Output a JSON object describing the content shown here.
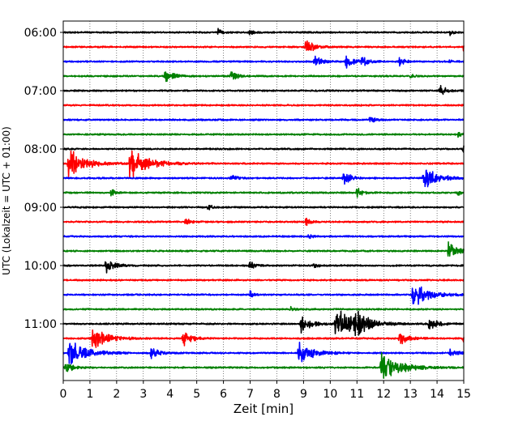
{
  "chart_data": {
    "type": "line",
    "title": "",
    "xlabel": "Zeit  [min]",
    "ylabel": "UTC (Lokalzeit = UTC + 01:00)",
    "xlim": [
      0,
      15
    ],
    "x_ticks": [
      "0",
      "1",
      "2",
      "3",
      "4",
      "5",
      "6",
      "7",
      "8",
      "9",
      "10",
      "11",
      "12",
      "13",
      "14",
      "15"
    ],
    "y_ticks": [
      "06:00",
      "07:00",
      "08:00",
      "09:00",
      "10:00",
      "11:00"
    ],
    "grid": "vertical dotted lines at each minute",
    "legend": "none",
    "trace_minutes": 15,
    "trace_colors": [
      "#000000",
      "#ff0000",
      "#0000ff",
      "#008000"
    ],
    "traces": [
      {
        "start": "06:00",
        "color": "black",
        "events": [
          {
            "t": 5.8,
            "amp": 0.25
          },
          {
            "t": 7.0,
            "amp": 0.2
          },
          {
            "t": 14.5,
            "amp": 0.2
          }
        ]
      },
      {
        "start": "06:15",
        "color": "red",
        "events": [
          {
            "t": 9.1,
            "amp": 0.6
          },
          {
            "t": 15.0,
            "amp": 0.4
          }
        ]
      },
      {
        "start": "06:30",
        "color": "blue",
        "events": [
          {
            "t": 9.4,
            "amp": 0.5
          },
          {
            "t": 10.6,
            "amp": 0.55
          },
          {
            "t": 11.2,
            "amp": 0.4
          },
          {
            "t": 12.6,
            "amp": 0.35
          },
          {
            "t": 14.5,
            "amp": 0.2
          }
        ]
      },
      {
        "start": "06:45",
        "color": "green",
        "events": [
          {
            "t": 3.8,
            "amp": 0.6
          },
          {
            "t": 6.3,
            "amp": 0.4
          },
          {
            "t": 13.0,
            "amp": 0.2
          }
        ]
      },
      {
        "start": "07:00",
        "color": "black",
        "events": [
          {
            "t": 14.1,
            "amp": 0.45
          }
        ]
      },
      {
        "start": "07:15",
        "color": "red",
        "events": []
      },
      {
        "start": "07:30",
        "color": "blue",
        "events": [
          {
            "t": 11.5,
            "amp": 0.3
          }
        ]
      },
      {
        "start": "07:45",
        "color": "green",
        "events": [
          {
            "t": 14.8,
            "amp": 0.2
          }
        ]
      },
      {
        "start": "08:00",
        "color": "black",
        "events": [
          {
            "t": 15.0,
            "amp": 0.3
          }
        ]
      },
      {
        "start": "08:15",
        "color": "red",
        "events": [
          {
            "t": 0.2,
            "amp": 1.2
          },
          {
            "t": 2.5,
            "amp": 1.3
          }
        ]
      },
      {
        "start": "08:30",
        "color": "blue",
        "events": [
          {
            "t": 6.3,
            "amp": 0.35
          },
          {
            "t": 10.5,
            "amp": 0.55
          },
          {
            "t": 13.5,
            "amp": 1.0
          }
        ]
      },
      {
        "start": "08:45",
        "color": "green",
        "events": [
          {
            "t": 1.8,
            "amp": 0.3
          },
          {
            "t": 11.0,
            "amp": 0.4
          },
          {
            "t": 14.8,
            "amp": 0.2
          }
        ]
      },
      {
        "start": "09:00",
        "color": "black",
        "events": [
          {
            "t": 5.4,
            "amp": 0.3
          }
        ]
      },
      {
        "start": "09:15",
        "color": "red",
        "events": [
          {
            "t": 4.6,
            "amp": 0.3
          },
          {
            "t": 9.1,
            "amp": 0.3
          }
        ]
      },
      {
        "start": "09:30",
        "color": "blue",
        "events": [
          {
            "t": 9.2,
            "amp": 0.2
          }
        ]
      },
      {
        "start": "09:45",
        "color": "green",
        "events": [
          {
            "t": 14.4,
            "amp": 0.7
          }
        ]
      },
      {
        "start": "10:00",
        "color": "black",
        "events": [
          {
            "t": 1.6,
            "amp": 0.6
          },
          {
            "t": 7.0,
            "amp": 0.35
          },
          {
            "t": 9.4,
            "amp": 0.25
          }
        ]
      },
      {
        "start": "10:15",
        "color": "red",
        "events": []
      },
      {
        "start": "10:30",
        "color": "blue",
        "events": [
          {
            "t": 7.0,
            "amp": 0.3
          },
          {
            "t": 13.1,
            "amp": 1.1
          }
        ]
      },
      {
        "start": "10:45",
        "color": "green",
        "events": [
          {
            "t": 8.5,
            "amp": 0.2
          }
        ]
      },
      {
        "start": "11:00",
        "color": "black",
        "events": [
          {
            "t": 8.9,
            "amp": 0.7
          },
          {
            "t": 10.2,
            "amp": 1.3
          },
          {
            "t": 10.9,
            "amp": 0.9
          },
          {
            "t": 13.7,
            "amp": 0.6
          }
        ]
      },
      {
        "start": "11:15",
        "color": "red",
        "events": [
          {
            "t": 1.1,
            "amp": 1.0
          },
          {
            "t": 4.5,
            "amp": 0.6
          },
          {
            "t": 12.6,
            "amp": 0.6
          },
          {
            "t": 15.0,
            "amp": 0.3
          }
        ]
      },
      {
        "start": "11:30",
        "color": "blue",
        "events": [
          {
            "t": 0.2,
            "amp": 1.2
          },
          {
            "t": 3.3,
            "amp": 0.5
          },
          {
            "t": 8.8,
            "amp": 1.0
          },
          {
            "t": 14.5,
            "amp": 0.45
          }
        ]
      },
      {
        "start": "11:45",
        "color": "green",
        "events": [
          {
            "t": 0.1,
            "amp": 0.5
          },
          {
            "t": 11.9,
            "amp": 1.3
          }
        ]
      }
    ]
  }
}
